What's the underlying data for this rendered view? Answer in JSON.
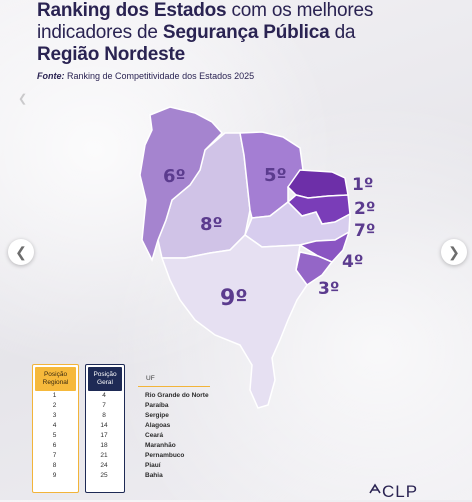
{
  "title": {
    "line1_bold": "Ranking dos Estados",
    "line1_rest": " com os melhores",
    "line2_rest": "indicadores de ",
    "line2_bold": "Segurança Pública",
    "line2_tail": " da",
    "line3_bold": "Região Nordeste"
  },
  "source": {
    "label": "Fonte:",
    "text": " Ranking de Competitividade dos Estados 2025"
  },
  "map": {
    "ranks": [
      "6º",
      "5º",
      "1º",
      "2º",
      "7º",
      "8º",
      "4º",
      "3º",
      "9º"
    ],
    "colors": {
      "piaui": "#d0c3e7",
      "maranhao": "#a584cf",
      "ceara": "#a47ed3",
      "rn": "#6d2fa8",
      "paraiba": "#7a3db8",
      "pernambuco": "#d7cdee",
      "alagoas": "#8a55c2",
      "sergipe": "#9466c7",
      "bahia": "#e6e0f2"
    }
  },
  "table": {
    "regional_header": "Posição Regional",
    "geral_header": "Posição Geral",
    "uf_header": "UF",
    "rows": [
      {
        "regional": "1",
        "geral": "4",
        "uf": "Rio Grande do Norte"
      },
      {
        "regional": "2",
        "geral": "7",
        "uf": "Paraíba"
      },
      {
        "regional": "3",
        "geral": "8",
        "uf": "Sergipe"
      },
      {
        "regional": "4",
        "geral": "14",
        "uf": "Alagoas"
      },
      {
        "regional": "5",
        "geral": "17",
        "uf": "Ceará"
      },
      {
        "regional": "6",
        "geral": "18",
        "uf": "Maranhão"
      },
      {
        "regional": "7",
        "geral": "21",
        "uf": "Pernambuco"
      },
      {
        "regional": "8",
        "geral": "24",
        "uf": "Piauí"
      },
      {
        "regional": "9",
        "geral": "25",
        "uf": "Bahia"
      }
    ]
  },
  "logo": {
    "text": "CLP"
  },
  "icons": {
    "prev": "chevron-left-icon",
    "next": "chevron-right-icon"
  }
}
